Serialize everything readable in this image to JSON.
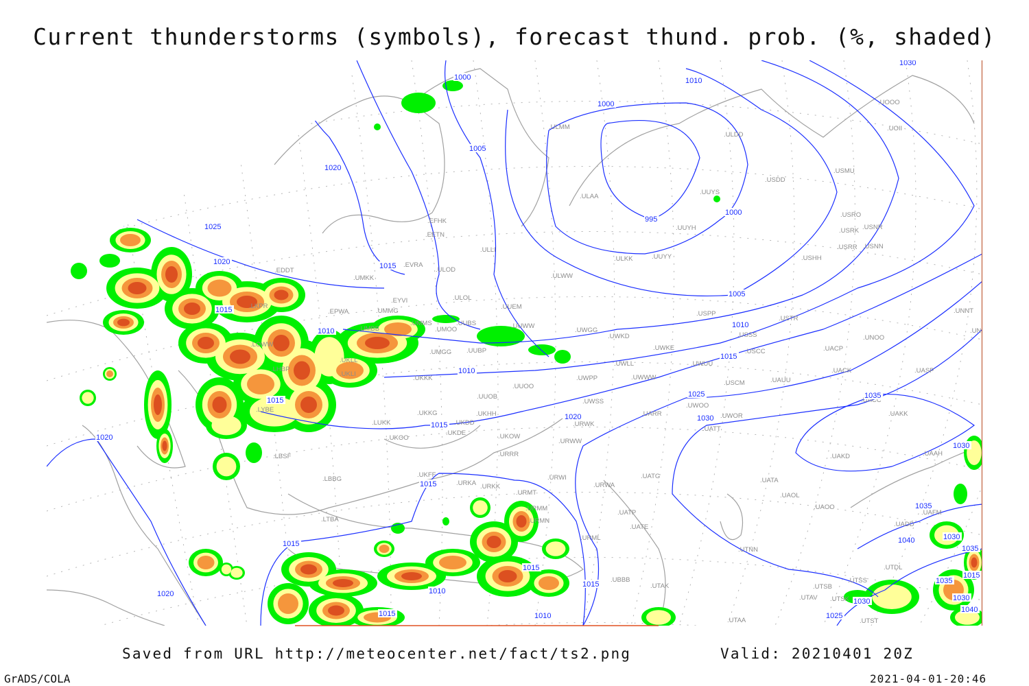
{
  "title": "Current thunderstorms (symbols), forecast thund. prob. (%, shaded)",
  "footer": {
    "source": "Saved from URL http://meteocenter.net/fact/ts2.png",
    "valid": "Valid: 20210401 20Z",
    "software": "GrADS/COLA",
    "timestamp": "2021-04-01-20:46"
  },
  "colors": {
    "prob_low": "#00f000",
    "prob_mid": "#ffff99",
    "prob_high": "#f5963c",
    "prob_very_high": "#dc5020",
    "isobar": "#1a2eff",
    "coastline": "#a0a0a0"
  },
  "isobar_labels": [
    "1000",
    "1010",
    "1030",
    "1000",
    "1005",
    "1020",
    "1025",
    "1020",
    "1015",
    "995",
    "1000",
    "1005",
    "1015",
    "1010",
    "1010",
    "1015",
    "1010",
    "1015",
    "1025",
    "1035",
    "1020",
    "1030",
    "1015",
    "1020",
    "1030",
    "1015",
    "1035",
    "1015",
    "1040",
    "1030",
    "1035",
    "1015",
    "1015",
    "1035",
    "1010",
    "1015",
    "1030",
    "1020",
    "1030",
    "1040",
    "1015",
    "1010",
    "1025"
  ],
  "stations": [
    "EDDT",
    "UMKK",
    "EVRA",
    "EFHK",
    "EETN",
    "ULLI",
    "ULOD",
    "ULOL",
    "EYVI",
    "UUEM",
    "UMMG",
    "EPWA",
    "UMMS",
    "UMOO",
    "UUBS",
    "UMBB",
    "UUWW",
    "UMGG",
    "UUBP",
    "UKKK",
    "UUOO",
    "UUOB",
    "UKKG",
    "UKHH",
    "UKDD",
    "UKDE",
    "LUKK",
    "UKOO",
    "UKOW",
    "URRR",
    "LBSF",
    "LBBG",
    "UKFF",
    "URKA",
    "URKK",
    "URMT",
    "URMM",
    "URMN",
    "URWI",
    "URWA",
    "UATG",
    "UATP",
    "UATE",
    "URML",
    "LTBA",
    "UBBB",
    "UTAK",
    "UTAA",
    "ULMM",
    "ULAA",
    "ULKK",
    "UUYY",
    "UUYH",
    "UUYS",
    "ULDD",
    "USDD",
    "USMU",
    "USRO",
    "USRK",
    "USNR",
    "USRR",
    "USNN",
    "USHH",
    "ULWW",
    "USPP",
    "USTR",
    "USSS",
    "USCC",
    "UWGG",
    "UWKD",
    "UWKE",
    "UWUU",
    "UWLL",
    "UWPP",
    "UWWW",
    "USCM",
    "UAUU",
    "UACP",
    "UNOO",
    "UACK",
    "UASP",
    "UNNT",
    "UNBB",
    "UWSS",
    "URWK",
    "URWW",
    "UARR",
    "UWOO",
    "UWOR",
    "UATT",
    "UACC",
    "UAKK",
    "UAKD",
    "UAAH",
    "UATA",
    "UAOL",
    "UAOO",
    "UTAV",
    "UTSB",
    "UTSS",
    "UTSK",
    "UTST",
    "UTDL",
    "UAFM",
    "UADD",
    "UTNN",
    "UOOO",
    "UOII",
    "LHBP",
    "LKPR",
    "LOWW",
    "LYBE",
    "UKLI",
    "UKLL"
  ]
}
